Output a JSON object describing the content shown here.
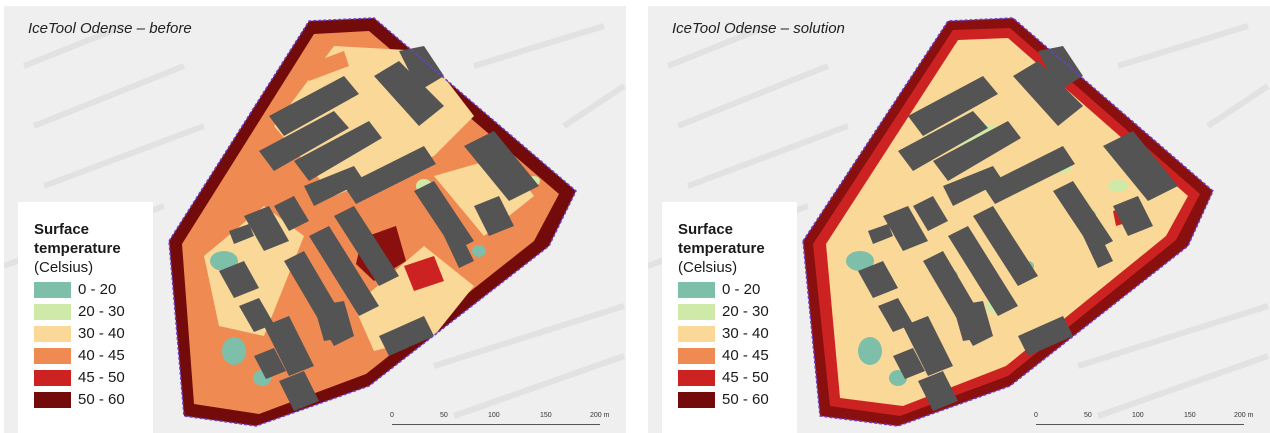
{
  "panels": [
    {
      "title": "IceTool Odense – before",
      "legend": {
        "title": "Surface temperature",
        "unit": "(Celsius)",
        "items": [
          {
            "label": "0 - 20",
            "color": "#7dbfa8"
          },
          {
            "label": "20 - 30",
            "color": "#cfe9a8"
          },
          {
            "label": "30 - 40",
            "color": "#fad898"
          },
          {
            "label": "40 - 45",
            "color": "#ee8a52"
          },
          {
            "label": "45 - 50",
            "color": "#cc2222"
          },
          {
            "label": "50 - 60",
            "color": "#730b0b"
          }
        ]
      },
      "scalebar": {
        "ticks": [
          "0",
          "50",
          "100",
          "150",
          "200 m"
        ]
      }
    },
    {
      "title": "IceTool Odense – solution",
      "legend": {
        "title": "Surface temperature",
        "unit": "(Celsius)",
        "items": [
          {
            "label": "0 - 20",
            "color": "#7dbfa8"
          },
          {
            "label": "20 - 30",
            "color": "#cfe9a8"
          },
          {
            "label": "30 - 40",
            "color": "#fad898"
          },
          {
            "label": "40 - 45",
            "color": "#ee8a52"
          },
          {
            "label": "45 - 50",
            "color": "#cc2222"
          },
          {
            "label": "50 - 60",
            "color": "#730b0b"
          }
        ]
      },
      "scalebar": {
        "ticks": [
          "0",
          "50",
          "100",
          "150",
          "200 m"
        ]
      }
    }
  ],
  "colors": {
    "building": "#545454",
    "boundary": "#6a3fcf",
    "basemap": "#efefef"
  }
}
